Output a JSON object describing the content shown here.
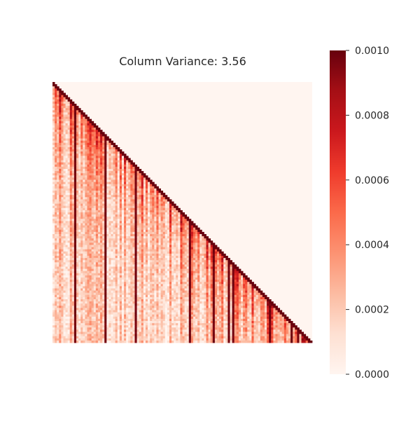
{
  "chart_data": {
    "type": "heatmap",
    "title": "Column Variance: 3.56",
    "xlabel": "",
    "ylabel": "",
    "colormap": "Reds",
    "color_low": "#fff5f0",
    "color_high": "#67000d",
    "value_range": [
      0.0,
      0.001
    ],
    "mask": "upper-triangle",
    "colorbar": {
      "ticks": [
        0.0,
        0.0002,
        0.0004,
        0.0006,
        0.0008,
        0.001
      ],
      "tick_labels": [
        "0.0000",
        "0.0002",
        "0.0004",
        "0.0006",
        "0.0008",
        "0.0010"
      ]
    },
    "grid": false,
    "axis_ticks_visible": false
  }
}
